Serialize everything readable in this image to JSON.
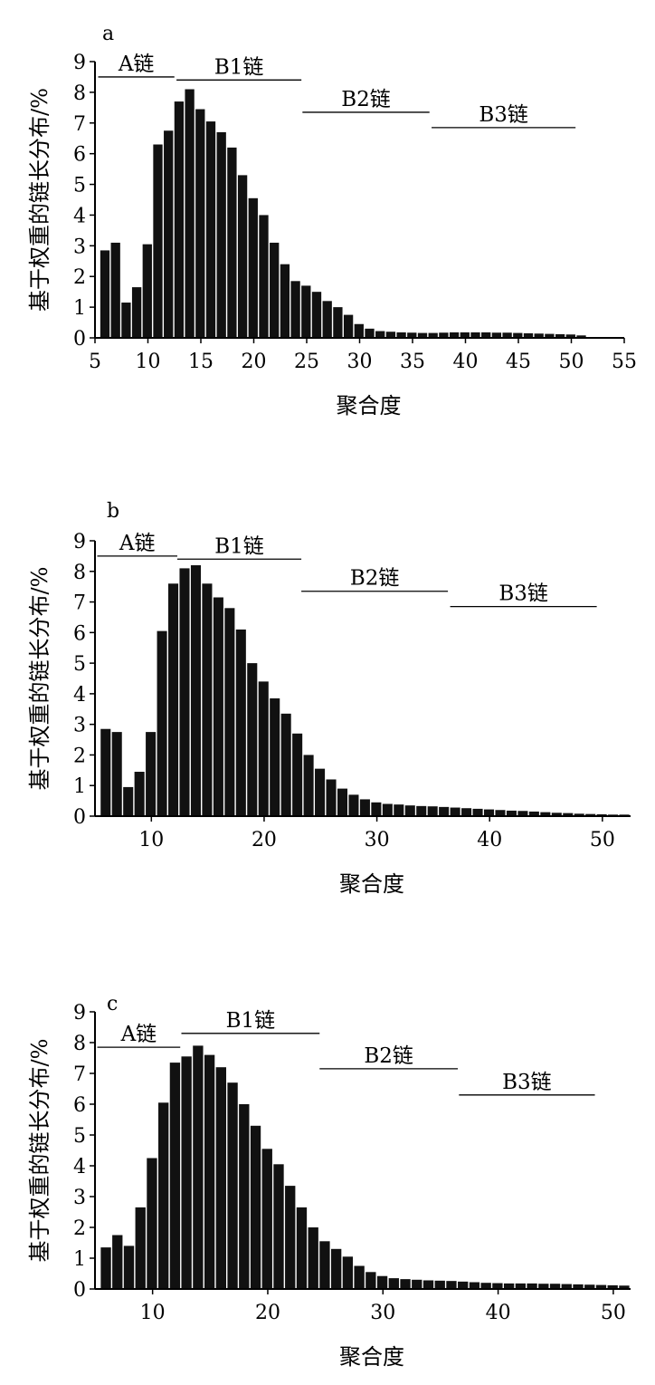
{
  "chart_data": [
    {
      "panel_label": "a",
      "type": "bar",
      "xlabel": "聚合度",
      "ylabel": "基于权重的链长分布/%",
      "xlim": [
        5,
        55
      ],
      "ylim": [
        0,
        9
      ],
      "xticks": [
        5,
        10,
        15,
        20,
        25,
        30,
        35,
        40,
        45,
        50,
        55
      ],
      "yticks": [
        0,
        1,
        2,
        3,
        4,
        5,
        6,
        7,
        8,
        9
      ],
      "x": [
        6,
        7,
        8,
        9,
        10,
        11,
        12,
        13,
        14,
        15,
        16,
        17,
        18,
        19,
        20,
        21,
        22,
        23,
        24,
        25,
        26,
        27,
        28,
        29,
        30,
        31,
        32,
        33,
        34,
        35,
        36,
        37,
        38,
        39,
        40,
        41,
        42,
        43,
        44,
        45,
        46,
        47,
        48,
        49,
        50,
        51
      ],
      "values": [
        2.85,
        3.1,
        1.15,
        1.65,
        3.05,
        6.3,
        6.75,
        7.7,
        8.1,
        7.45,
        7.05,
        6.7,
        6.2,
        5.3,
        4.55,
        4.0,
        3.1,
        2.4,
        1.85,
        1.7,
        1.5,
        1.2,
        1.0,
        0.75,
        0.45,
        0.3,
        0.22,
        0.2,
        0.18,
        0.17,
        0.16,
        0.16,
        0.17,
        0.18,
        0.18,
        0.18,
        0.18,
        0.17,
        0.17,
        0.16,
        0.15,
        0.14,
        0.13,
        0.12,
        0.11,
        0.08
      ],
      "chain_ranges": [
        {
          "label": "A链",
          "from": 5.3,
          "to": 12.5,
          "y": 8.5
        },
        {
          "label": "B1链",
          "from": 12.7,
          "to": 24.5,
          "y": 8.4
        },
        {
          "label": "B2链",
          "from": 24.6,
          "to": 36.6,
          "y": 7.35
        },
        {
          "label": "B3链",
          "from": 36.8,
          "to": 50.4,
          "y": 6.85
        }
      ]
    },
    {
      "panel_label": "b",
      "type": "bar",
      "xlabel": "聚合度",
      "ylabel": "基于权重的链长分布/%",
      "xlim": [
        5,
        52.5
      ],
      "ylim": [
        0,
        9
      ],
      "xticks": [
        10,
        20,
        30,
        40,
        50
      ],
      "yticks": [
        0,
        1,
        2,
        3,
        4,
        5,
        6,
        7,
        8,
        9
      ],
      "x": [
        6,
        7,
        8,
        9,
        10,
        11,
        12,
        13,
        14,
        15,
        16,
        17,
        18,
        19,
        20,
        21,
        22,
        23,
        24,
        25,
        26,
        27,
        28,
        29,
        30,
        31,
        32,
        33,
        34,
        35,
        36,
        37,
        38,
        39,
        40,
        41,
        42,
        43,
        44,
        45,
        46,
        47,
        48,
        49,
        50,
        51,
        52
      ],
      "values": [
        2.85,
        2.75,
        0.95,
        1.45,
        2.75,
        6.05,
        7.6,
        8.1,
        8.2,
        7.6,
        7.15,
        6.8,
        6.1,
        5.0,
        4.4,
        3.85,
        3.35,
        2.7,
        2.0,
        1.55,
        1.2,
        0.9,
        0.7,
        0.55,
        0.45,
        0.4,
        0.38,
        0.35,
        0.33,
        0.32,
        0.3,
        0.28,
        0.26,
        0.24,
        0.22,
        0.2,
        0.18,
        0.17,
        0.15,
        0.13,
        0.11,
        0.1,
        0.08,
        0.07,
        0.06,
        0.05,
        0.05
      ],
      "chain_ranges": [
        {
          "label": "A链",
          "from": 5.2,
          "to": 12.3,
          "y": 8.5
        },
        {
          "label": "B1链",
          "from": 12.3,
          "to": 23.3,
          "y": 8.4
        },
        {
          "label": "B2链",
          "from": 23.3,
          "to": 36.3,
          "y": 7.35
        },
        {
          "label": "B3链",
          "from": 36.5,
          "to": 49.5,
          "y": 6.85
        }
      ]
    },
    {
      "panel_label": "c",
      "type": "bar",
      "xlabel": "聚合度",
      "ylabel": "基于权重的链长分布/%",
      "xlim": [
        5,
        51.5
      ],
      "ylim": [
        0,
        9
      ],
      "xticks": [
        10,
        20,
        30,
        40,
        50
      ],
      "yticks": [
        0,
        1,
        2,
        3,
        4,
        5,
        6,
        7,
        8,
        9
      ],
      "x": [
        6,
        7,
        8,
        9,
        10,
        11,
        12,
        13,
        14,
        15,
        16,
        17,
        18,
        19,
        20,
        21,
        22,
        23,
        24,
        25,
        26,
        27,
        28,
        29,
        30,
        31,
        32,
        33,
        34,
        35,
        36,
        37,
        38,
        39,
        40,
        41,
        42,
        43,
        44,
        45,
        46,
        47,
        48,
        49,
        50,
        51
      ],
      "values": [
        1.35,
        1.75,
        1.4,
        2.65,
        4.25,
        6.05,
        7.35,
        7.55,
        7.9,
        7.6,
        7.2,
        6.7,
        6.0,
        5.3,
        4.55,
        4.05,
        3.35,
        2.65,
        2.0,
        1.55,
        1.3,
        1.05,
        0.75,
        0.55,
        0.42,
        0.35,
        0.32,
        0.3,
        0.28,
        0.27,
        0.26,
        0.24,
        0.22,
        0.2,
        0.19,
        0.18,
        0.18,
        0.18,
        0.17,
        0.17,
        0.16,
        0.15,
        0.14,
        0.13,
        0.12,
        0.11
      ],
      "chain_ranges": [
        {
          "label": "A链",
          "from": 5.2,
          "to": 12.4,
          "y": 7.85
        },
        {
          "label": "B1链",
          "from": 12.5,
          "to": 24.5,
          "y": 8.3
        },
        {
          "label": "B2链",
          "from": 24.5,
          "to": 36.5,
          "y": 7.15
        },
        {
          "label": "B3链",
          "from": 36.6,
          "to": 48.4,
          "y": 6.3
        }
      ]
    }
  ]
}
